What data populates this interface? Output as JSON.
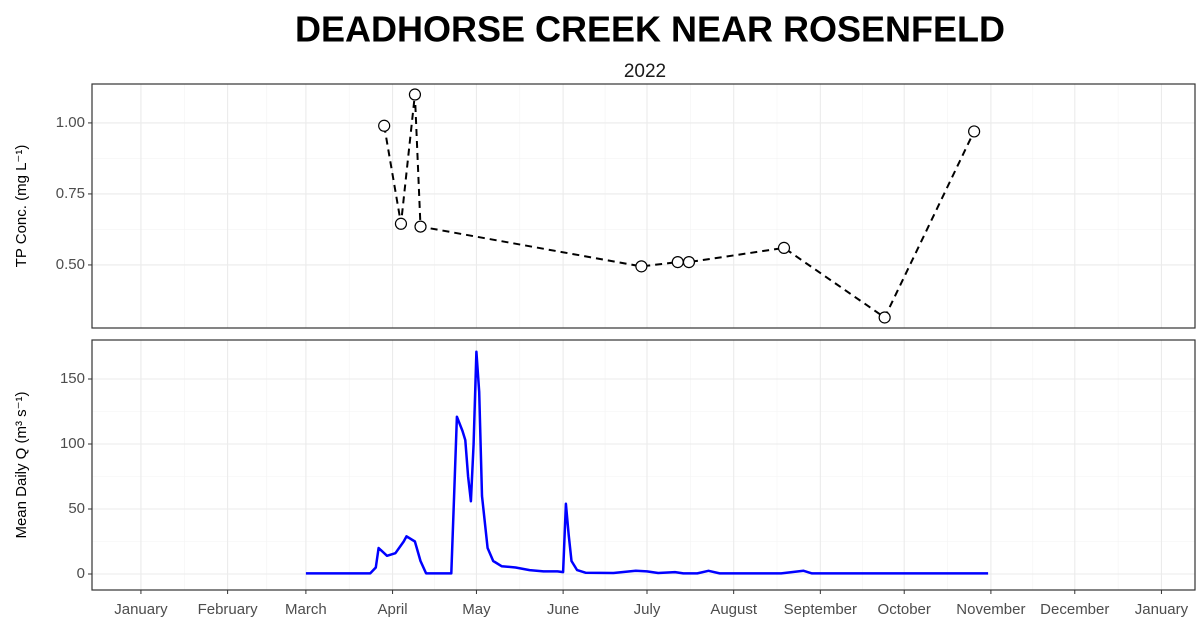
{
  "chart_data": [
    {
      "type": "line",
      "title": "DEADHORSE CREEK NEAR ROSENFELD",
      "subtitle": "2022",
      "y_label": "TP Conc. (mg L⁻¹)",
      "color": "#000000",
      "line_style": "dashed",
      "markers": "open-circle",
      "x": [
        88,
        94,
        99,
        101,
        180,
        193,
        197,
        231,
        267,
        299
      ],
      "values": [
        0.99,
        0.645,
        1.1,
        0.635,
        0.495,
        0.51,
        0.51,
        0.56,
        0.315,
        0.97
      ],
      "ylim": [
        0.278,
        1.137
      ],
      "yticks": [
        {
          "value": 0.5,
          "label": "0.50"
        },
        0.75,
        {
          "value": 1,
          "label": "1.00"
        }
      ],
      "grid": true
    },
    {
      "type": "line",
      "y_label": "Mean Daily Q (m³ s⁻¹)",
      "color": "#0000ff",
      "line_style": "solid",
      "x": [
        60,
        70,
        83,
        85,
        86,
        89,
        92,
        95,
        96,
        99,
        101,
        103,
        112,
        113,
        114,
        116,
        117,
        118,
        119,
        120,
        121,
        122,
        123,
        125,
        127,
        130,
        135,
        140,
        145,
        150,
        152,
        153,
        154,
        155,
        157,
        160,
        170,
        178,
        182,
        186,
        192,
        195,
        200,
        204,
        208,
        230,
        238,
        241,
        270,
        304
      ],
      "values": [
        0.5,
        0.5,
        0.5,
        5,
        20,
        14,
        16,
        25,
        29,
        25,
        10,
        0.5,
        0.5,
        60,
        121,
        110,
        103,
        75,
        56,
        100,
        171,
        140,
        60,
        20,
        10,
        6,
        5,
        3,
        2,
        2,
        1.5,
        54,
        30,
        10,
        3,
        1,
        0.8,
        2.5,
        2,
        0.8,
        1.5,
        0.5,
        0.5,
        2.5,
        0.5,
        0.5,
        2.5,
        0.5,
        0.5,
        0.5
      ],
      "ylim": [
        -12.3,
        180
      ],
      "yticks": [
        0,
        50,
        100,
        150
      ],
      "grid": true,
      "xlim": [
        -16.5,
        378
      ],
      "xticks": [
        {
          "value": 1,
          "label": "January"
        },
        {
          "value": 32,
          "label": "February"
        },
        {
          "value": 60,
          "label": "March"
        },
        {
          "value": 91,
          "label": "April"
        },
        {
          "value": 121,
          "label": "May"
        },
        {
          "value": 152,
          "label": "June"
        },
        {
          "value": 182,
          "label": "July"
        },
        {
          "value": 213,
          "label": "August"
        },
        {
          "value": 244,
          "label": "September"
        },
        {
          "value": 274,
          "label": "October"
        },
        {
          "value": 305,
          "label": "November"
        },
        {
          "value": 335,
          "label": "December"
        },
        {
          "value": 366,
          "label": "January"
        }
      ]
    }
  ]
}
